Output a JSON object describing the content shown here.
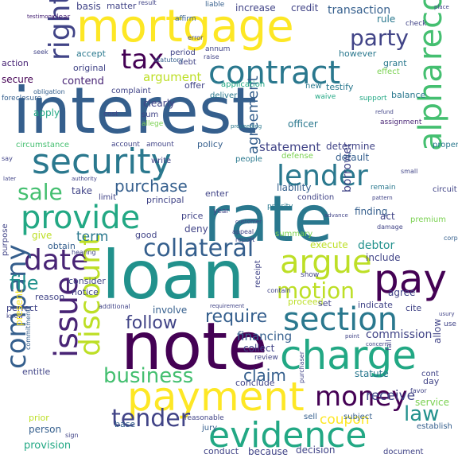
{
  "words": [
    "interest",
    "rate",
    "loan",
    "note",
    "mortgage",
    "payment",
    "charge",
    "security",
    "evidence",
    "contract",
    "pay",
    "provide",
    "section",
    "lender",
    "record",
    "alpha",
    "date",
    "argue",
    "issue",
    "company",
    "discount",
    "money",
    "tax",
    "party",
    "right",
    "collateral",
    "tender",
    "business",
    "motion",
    "sale",
    "follow",
    "file",
    "require",
    "purchase",
    "law",
    "claim",
    "agreement",
    "statement",
    "argument",
    "term",
    "debtor",
    "financing",
    "commission",
    "coupon",
    "receive",
    "borrower",
    "contend",
    "transaction",
    "basis",
    "matter",
    "increase",
    "credit",
    "result",
    "liable",
    "action",
    "secure",
    "accept",
    "period",
    "debt",
    "annum",
    "original",
    "raise",
    "affirm",
    "error",
    "statutory",
    "clear",
    "testimony",
    "seek",
    "check",
    "grant",
    "rule",
    "however",
    "effect",
    "application",
    "new",
    "testify",
    "complaint",
    "sum",
    "allege",
    "clearly",
    "offer",
    "deliver",
    "cost",
    "officer",
    "waive",
    "support",
    "balance",
    "assignment",
    "refund",
    "obligation",
    "foreclosure",
    "apply",
    "circumstance",
    "account",
    "amount",
    "policy",
    "proceeding",
    "people",
    "defense",
    "default",
    "determine",
    "property",
    "small",
    "later",
    "authority",
    "write",
    "limit",
    "take",
    "enter",
    "liability",
    "condition",
    "remain",
    "pattern",
    "principal",
    "priority",
    "circuit",
    "corporation",
    "price",
    "year",
    "customer",
    "appeal",
    "deny",
    "report",
    "finding",
    "act",
    "damage",
    "premium",
    "give",
    "obtain",
    "good",
    "summary",
    "advance",
    "execute",
    "include",
    "hearing",
    "purpose",
    "consider",
    "notice",
    "receipt",
    "show",
    "reason",
    "contain",
    "agree",
    "perfect",
    "additional",
    "involve",
    "requirement",
    "proceed",
    "set",
    "indicate",
    "cite",
    "use",
    "usury",
    "know",
    "commitment",
    "point",
    "allow",
    "present",
    "review",
    "fail",
    "concern",
    "day",
    "entitle",
    "collect",
    "statute",
    "cont",
    "favor",
    "conclude",
    "purchaser",
    "prior",
    "base",
    "sell",
    "subject",
    "service",
    "establish",
    "person",
    "provision",
    "jury",
    "sign",
    "reasonable",
    "conduct",
    "because",
    "decision",
    "document",
    "say",
    "place"
  ]
}
